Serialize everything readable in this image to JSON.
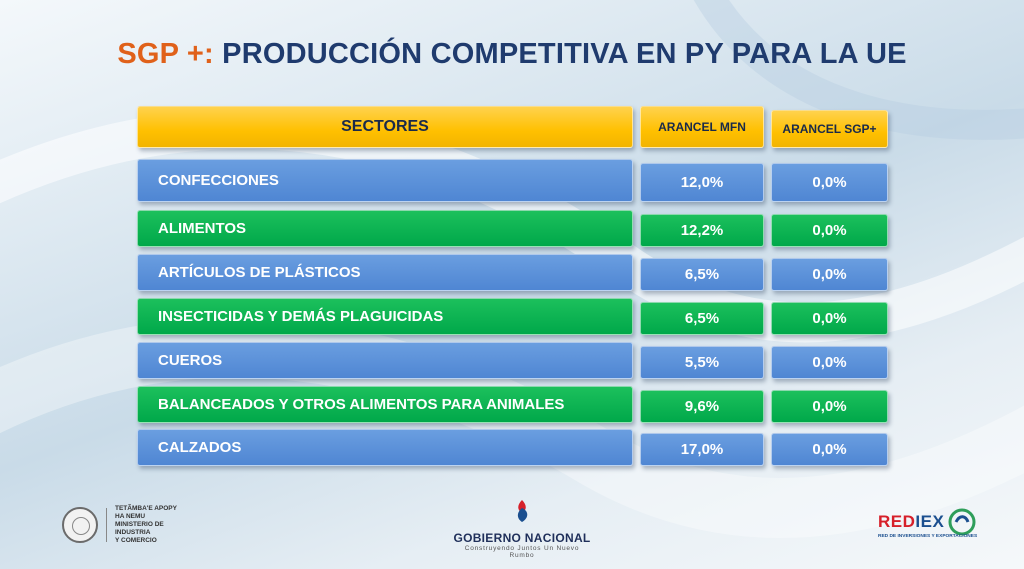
{
  "title": {
    "prefix": "SGP +:",
    "main": "PRODUCCIÓN COMPETITIVA EN PY PARA LA UE"
  },
  "table": {
    "headers": {
      "sectores": "SECTORES",
      "arancel_mfn": "ARANCEL MFN",
      "arancel_sgp": "ARANCEL SGP+"
    },
    "rows": [
      {
        "sector": "CONFECCIONES",
        "mfn": "12,0%",
        "sgp": "0,0%",
        "color": "blue"
      },
      {
        "sector": "ALIMENTOS",
        "mfn": "12,2%",
        "sgp": "0,0%",
        "color": "green"
      },
      {
        "sector": "ARTÍCULOS DE PLÁSTICOS",
        "mfn": "6,5%",
        "sgp": "0,0%",
        "color": "blue"
      },
      {
        "sector": "INSECTICIDAS Y DEMÁS PLAGUICIDAS",
        "mfn": "6,5%",
        "sgp": "0,0%",
        "color": "green"
      },
      {
        "sector": "CUEROS",
        "mfn": "5,5%",
        "sgp": "0,0%",
        "color": "blue"
      },
      {
        "sector": "BALANCEADOS Y OTROS ALIMENTOS PARA ANIMALES",
        "mfn": "9,6%",
        "sgp": "0,0%",
        "color": "green"
      },
      {
        "sector": "CALZADOS",
        "mfn": "17,0%",
        "sgp": "0,0%",
        "color": "blue"
      }
    ]
  },
  "colors": {
    "header_yellow": "#ffc000",
    "row_blue": "#4f86d3",
    "row_green": "#00a84a",
    "title_orange": "#e0611a",
    "title_navy": "#1f3b6e"
  },
  "footer": {
    "ministry": {
      "lines": [
        "TETÃMBA'E APOPY",
        "HA NEMU",
        "MINISTERIO DE",
        "INDUSTRIA",
        "Y COMERCIO"
      ],
      "icon": "national-seal-icon"
    },
    "gobierno": {
      "name": "GOBIERNO NACIONAL",
      "tagline": "Construyendo Juntos Un Nuevo Rumbo",
      "icon": "gobierno-flame-icon"
    },
    "rediex": {
      "name_red": "RED",
      "name_iex": "IEX",
      "tagline": "RED DE INVERSIONES Y EXPORTACIONES",
      "icon": "rediex-swirl-icon"
    }
  }
}
